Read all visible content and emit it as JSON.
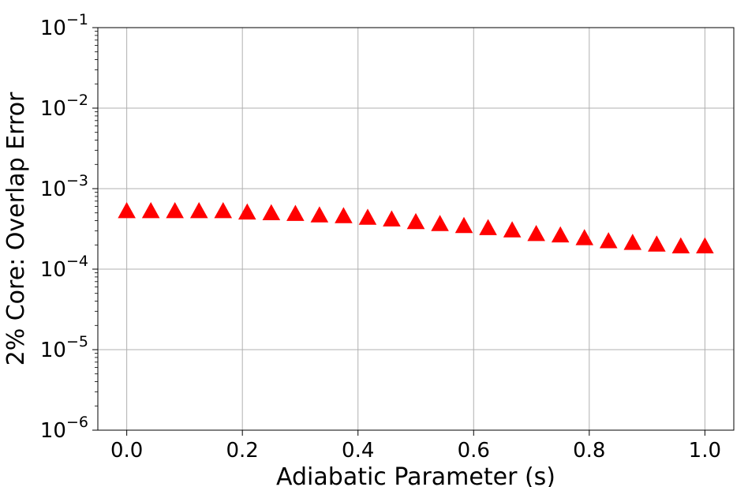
{
  "chart_data": {
    "type": "scatter",
    "xlabel": "Adiabatic Parameter (s)",
    "ylabel": "2% Core: Overlap Error",
    "xlim": [
      -0.05,
      1.05
    ],
    "ylim": [
      1e-06,
      0.1
    ],
    "yscale": "log",
    "grid": true,
    "marker": "triangle-up",
    "color": "#ff0000",
    "x_ticks": [
      {
        "value": 0.0,
        "label": "0.0"
      },
      {
        "value": 0.2,
        "label": "0.2"
      },
      {
        "value": 0.4,
        "label": "0.4"
      },
      {
        "value": 0.6,
        "label": "0.6"
      },
      {
        "value": 0.8,
        "label": "0.8"
      },
      {
        "value": 1.0,
        "label": "1.0"
      }
    ],
    "y_ticks": [
      {
        "value": 1e-06,
        "base": "10",
        "exp": "−6"
      },
      {
        "value": 1e-05,
        "base": "10",
        "exp": "−5"
      },
      {
        "value": 0.0001,
        "base": "10",
        "exp": "−4"
      },
      {
        "value": 0.001,
        "base": "10",
        "exp": "−3"
      },
      {
        "value": 0.01,
        "base": "10",
        "exp": "−2"
      },
      {
        "value": 0.1,
        "base": "10",
        "exp": "−1"
      }
    ],
    "series": [
      {
        "x": [
          0.0,
          0.0417,
          0.0833,
          0.125,
          0.1667,
          0.2083,
          0.25,
          0.2917,
          0.3333,
          0.375,
          0.4167,
          0.4583,
          0.5,
          0.5417,
          0.5833,
          0.625,
          0.6667,
          0.7083,
          0.75,
          0.7917,
          0.8333,
          0.875,
          0.9167,
          0.9583,
          1.0
        ],
        "y": [
          0.00052,
          0.00052,
          0.00052,
          0.00052,
          0.00052,
          0.0005,
          0.00049,
          0.00048,
          0.00046,
          0.00045,
          0.00043,
          0.00041,
          0.00038,
          0.00036,
          0.00034,
          0.00032,
          0.0003,
          0.00027,
          0.00026,
          0.00024,
          0.00022,
          0.00021,
          0.0002,
          0.00019,
          0.00019
        ]
      }
    ]
  }
}
